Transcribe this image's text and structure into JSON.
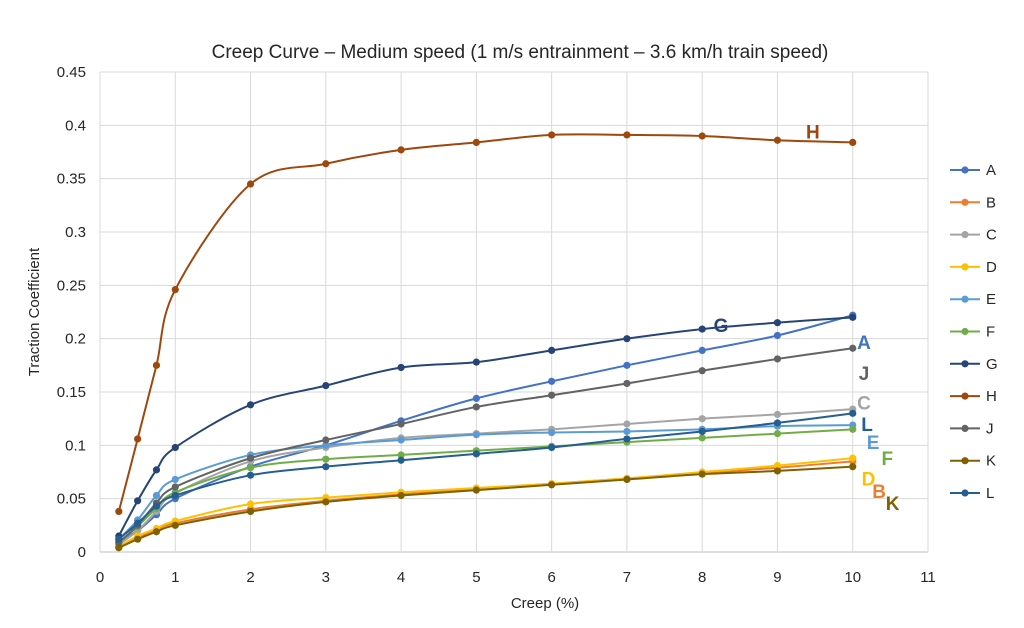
{
  "chart_data": {
    "type": "line",
    "title": "Creep Curve – Medium speed (1 m/s entrainment – 3.6 km/h train speed)",
    "xlabel": "Creep (%)",
    "ylabel": "Traction Coefficient",
    "xlim": [
      0,
      11
    ],
    "ylim": [
      0,
      0.45
    ],
    "xticks": [
      "0",
      "1",
      "2",
      "3",
      "4",
      "5",
      "6",
      "7",
      "8",
      "9",
      "10",
      "11"
    ],
    "yticks": [
      "0",
      "0.05",
      "0.1",
      "0.15",
      "0.2",
      "0.25",
      "0.3",
      "0.35",
      "0.4",
      "0.45"
    ],
    "grid": "vertical and horizontal major gridlines",
    "legend_position": "right",
    "x": [
      0.25,
      0.5,
      0.75,
      1,
      2,
      3,
      4,
      5,
      6,
      7,
      8,
      9,
      10
    ],
    "series": [
      {
        "name": "A",
        "color": "#4472C4",
        "values": [
          0.01,
          0.02,
          0.035,
          0.05,
          0.08,
          0.1,
          0.123,
          0.144,
          0.16,
          0.175,
          0.189,
          0.203,
          0.222
        ]
      },
      {
        "name": "B",
        "color": "#ED7D31",
        "values": [
          0.005,
          0.013,
          0.021,
          0.027,
          0.04,
          0.048,
          0.054,
          0.059,
          0.064,
          0.069,
          0.074,
          0.079,
          0.085
        ]
      },
      {
        "name": "C",
        "color": "#A5A5A5",
        "values": [
          0.007,
          0.02,
          0.038,
          0.055,
          0.085,
          0.098,
          0.107,
          0.111,
          0.115,
          0.12,
          0.125,
          0.129,
          0.134
        ]
      },
      {
        "name": "D",
        "color": "#FFC000",
        "values": [
          0.005,
          0.015,
          0.022,
          0.029,
          0.045,
          0.051,
          0.056,
          0.06,
          0.064,
          0.069,
          0.075,
          0.081,
          0.088
        ]
      },
      {
        "name": "E",
        "color": "#5B9BD5",
        "values": [
          0.012,
          0.03,
          0.053,
          0.068,
          0.091,
          0.1,
          0.105,
          0.11,
          0.112,
          0.113,
          0.115,
          0.118,
          0.119
        ]
      },
      {
        "name": "F",
        "color": "#70AD47",
        "values": [
          0.008,
          0.024,
          0.041,
          0.056,
          0.079,
          0.087,
          0.091,
          0.095,
          0.099,
          0.103,
          0.107,
          0.111,
          0.115
        ]
      },
      {
        "name": "G",
        "color": "#264478",
        "values": [
          0.015,
          0.048,
          0.077,
          0.098,
          0.138,
          0.156,
          0.173,
          0.178,
          0.189,
          0.2,
          0.209,
          0.215,
          0.22
        ]
      },
      {
        "name": "H",
        "color": "#9E480E",
        "values": [
          0.038,
          0.106,
          0.175,
          0.246,
          0.345,
          0.364,
          0.377,
          0.384,
          0.391,
          0.391,
          0.39,
          0.386,
          0.384
        ]
      },
      {
        "name": "J",
        "color": "#636363",
        "values": [
          0.009,
          0.025,
          0.046,
          0.061,
          0.088,
          0.105,
          0.12,
          0.136,
          0.147,
          0.158,
          0.17,
          0.181,
          0.191
        ]
      },
      {
        "name": "K",
        "color": "#806000",
        "values": [
          0.004,
          0.012,
          0.019,
          0.025,
          0.038,
          0.047,
          0.053,
          0.058,
          0.063,
          0.068,
          0.073,
          0.076,
          0.08
        ]
      },
      {
        "name": "L",
        "color": "#255E91",
        "values": [
          0.012,
          0.027,
          0.043,
          0.053,
          0.072,
          0.08,
          0.086,
          0.092,
          0.098,
          0.106,
          0.113,
          0.121,
          0.13
        ]
      }
    ],
    "annotations": [
      {
        "text": "H",
        "x": 9.47,
        "y": 0.394,
        "color": "#9E480E"
      },
      {
        "text": "G",
        "x": 8.25,
        "y": 0.213,
        "color": "#264478"
      },
      {
        "text": "A",
        "x": 10.15,
        "y": 0.197,
        "color": "#4472C4"
      },
      {
        "text": "J",
        "x": 10.15,
        "y": 0.168,
        "color": "#636363"
      },
      {
        "text": "C",
        "x": 10.15,
        "y": 0.14,
        "color": "#A5A5A5"
      },
      {
        "text": "L",
        "x": 10.19,
        "y": 0.12,
        "color": "#255E91"
      },
      {
        "text": "E",
        "x": 10.27,
        "y": 0.103,
        "color": "#5B9BD5"
      },
      {
        "text": "F",
        "x": 10.46,
        "y": 0.088,
        "color": "#70AD47"
      },
      {
        "text": "D",
        "x": 10.21,
        "y": 0.069,
        "color": "#FFC000"
      },
      {
        "text": "B",
        "x": 10.35,
        "y": 0.057,
        "color": "#ED7D31"
      },
      {
        "text": "K",
        "x": 10.53,
        "y": 0.046,
        "color": "#806000"
      }
    ]
  }
}
